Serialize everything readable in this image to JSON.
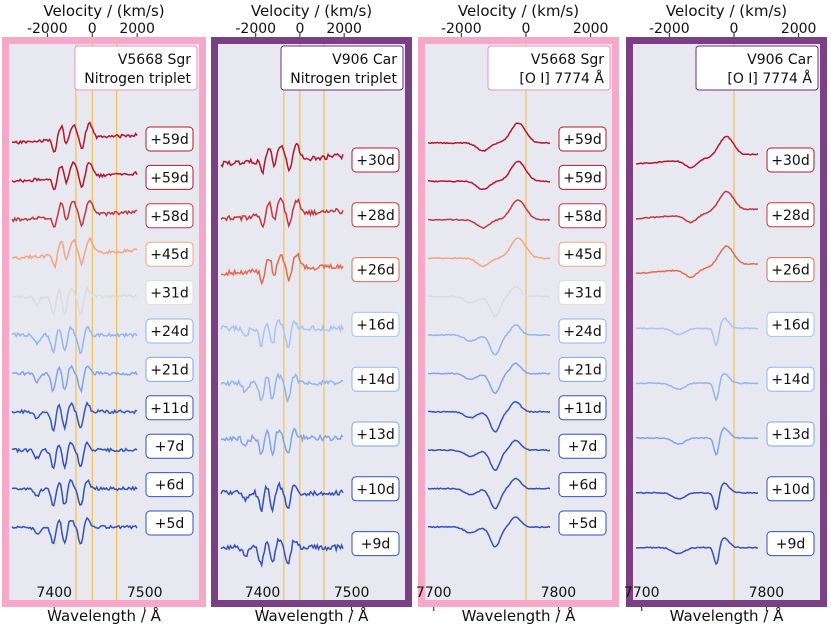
{
  "chart_data": {
    "type": "line",
    "figure_description_free": true,
    "panels": [
      {
        "id": "p1",
        "nova": "V5668 Sgr",
        "line_label": "Nitrogen triplet",
        "frame_color": "#f7a8c8",
        "title_color": "#f78fb8",
        "top_axis_label": "Velocity / (km/s)",
        "top_ticks": [
          "-2000",
          "0",
          "2000"
        ],
        "top_tick_values": [
          -2000,
          0,
          2000
        ],
        "bottom_axis_label": "Wavelength / Å",
        "bottom_ticks": [
          "7400",
          "7500"
        ],
        "bottom_tick_values": [
          7400,
          7500
        ],
        "xlim": [
          7350,
          7560
        ],
        "vref_lines": [
          7424,
          7442,
          7469
        ],
        "epochs": [
          {
            "label": "+59d",
            "color": "#b2182b"
          },
          {
            "label": "+59d",
            "color": "#b2182b"
          },
          {
            "label": "+58d",
            "color": "#c2383f"
          },
          {
            "label": "+45d",
            "color": "#f4a582"
          },
          {
            "label": "+31d",
            "color": "#dcdcdc"
          },
          {
            "label": "+24d",
            "color": "#92b6f0"
          },
          {
            "label": "+21d",
            "color": "#7fa5ea"
          },
          {
            "label": "+11d",
            "color": "#3656c0"
          },
          {
            "label": "+7d",
            "color": "#3252bd"
          },
          {
            "label": "+6d",
            "color": "#3252bd"
          },
          {
            "label": "+5d",
            "color": "#3252bd"
          }
        ]
      },
      {
        "id": "p2",
        "nova": "V906 Car",
        "line_label": "Nitrogen triplet",
        "frame_color": "#7b3f86",
        "title_color": "#6c2f78",
        "top_axis_label": "Velocity / (km/s)",
        "top_ticks": [
          "-2000",
          "0",
          "2000"
        ],
        "top_tick_values": [
          -2000,
          0,
          2000
        ],
        "bottom_axis_label": "Wavelength / Å",
        "bottom_ticks": [
          "7400",
          "7500"
        ],
        "bottom_tick_values": [
          7400,
          7500
        ],
        "xlim": [
          7350,
          7560
        ],
        "vref_lines": [
          7424,
          7442,
          7469
        ],
        "epochs": [
          {
            "label": "+30d",
            "color": "#b2182b"
          },
          {
            "label": "+28d",
            "color": "#c2383f"
          },
          {
            "label": "+26d",
            "color": "#e26a4f"
          },
          {
            "label": "+16d",
            "color": "#a8c4f2"
          },
          {
            "label": "+14d",
            "color": "#92b6f0"
          },
          {
            "label": "+13d",
            "color": "#7fa5ea"
          },
          {
            "label": "+10d",
            "color": "#3252bd"
          },
          {
            "label": "+9d",
            "color": "#3252bd"
          }
        ]
      },
      {
        "id": "p3",
        "nova": "V5668 Sgr",
        "line_label": "[O I] 7774 Å",
        "frame_color": "#f7a8c8",
        "title_color": "#f78fb8",
        "top_axis_label": "Velocity / (km/s)",
        "top_ticks": [
          "-2000",
          "0",
          "2000"
        ],
        "top_tick_values": [
          -2000,
          0,
          2000
        ],
        "bottom_axis_label": "Wavelength / Å",
        "bottom_ticks": [
          "7700",
          "7800"
        ],
        "bottom_tick_values": [
          7700,
          7800
        ],
        "xlim": [
          7693,
          7843
        ],
        "vref_lines": [
          7774
        ],
        "epochs": [
          {
            "label": "+59d",
            "color": "#b2182b"
          },
          {
            "label": "+59d",
            "color": "#b2182b"
          },
          {
            "label": "+58d",
            "color": "#c2383f"
          },
          {
            "label": "+45d",
            "color": "#f4a582"
          },
          {
            "label": "+31d",
            "color": "#dcdcdc"
          },
          {
            "label": "+24d",
            "color": "#92b6f0"
          },
          {
            "label": "+21d",
            "color": "#7fa5ea"
          },
          {
            "label": "+11d",
            "color": "#3656c0"
          },
          {
            "label": "+7d",
            "color": "#3252bd"
          },
          {
            "label": "+6d",
            "color": "#3252bd"
          },
          {
            "label": "+5d",
            "color": "#3252bd"
          }
        ]
      },
      {
        "id": "p4",
        "nova": "V906 Car",
        "line_label": "[O I] 7774 Å",
        "frame_color": "#7b3f86",
        "title_color": "#6c2f78",
        "top_axis_label": "Velocity / (km/s)",
        "top_ticks": [
          "-2000",
          "0",
          "2000"
        ],
        "top_tick_values": [
          -2000,
          0,
          2000
        ],
        "bottom_axis_label": "Wavelength / Å",
        "bottom_ticks": [
          "7700",
          "7800"
        ],
        "bottom_tick_values": [
          7700,
          7800
        ],
        "xlim": [
          7693,
          7843
        ],
        "vref_lines": [
          7774
        ],
        "epochs": [
          {
            "label": "+30d",
            "color": "#b2182b"
          },
          {
            "label": "+28d",
            "color": "#c2383f"
          },
          {
            "label": "+26d",
            "color": "#e26a4f"
          },
          {
            "label": "+16d",
            "color": "#a8c4f2"
          },
          {
            "label": "+14d",
            "color": "#92b6f0"
          },
          {
            "label": "+13d",
            "color": "#7fa5ea"
          },
          {
            "label": "+10d",
            "color": "#3252bd"
          },
          {
            "label": "+9d",
            "color": "#3252bd"
          }
        ]
      }
    ],
    "reference_line_color": "#f5b83a",
    "plot_background": "#e8e8f0"
  }
}
